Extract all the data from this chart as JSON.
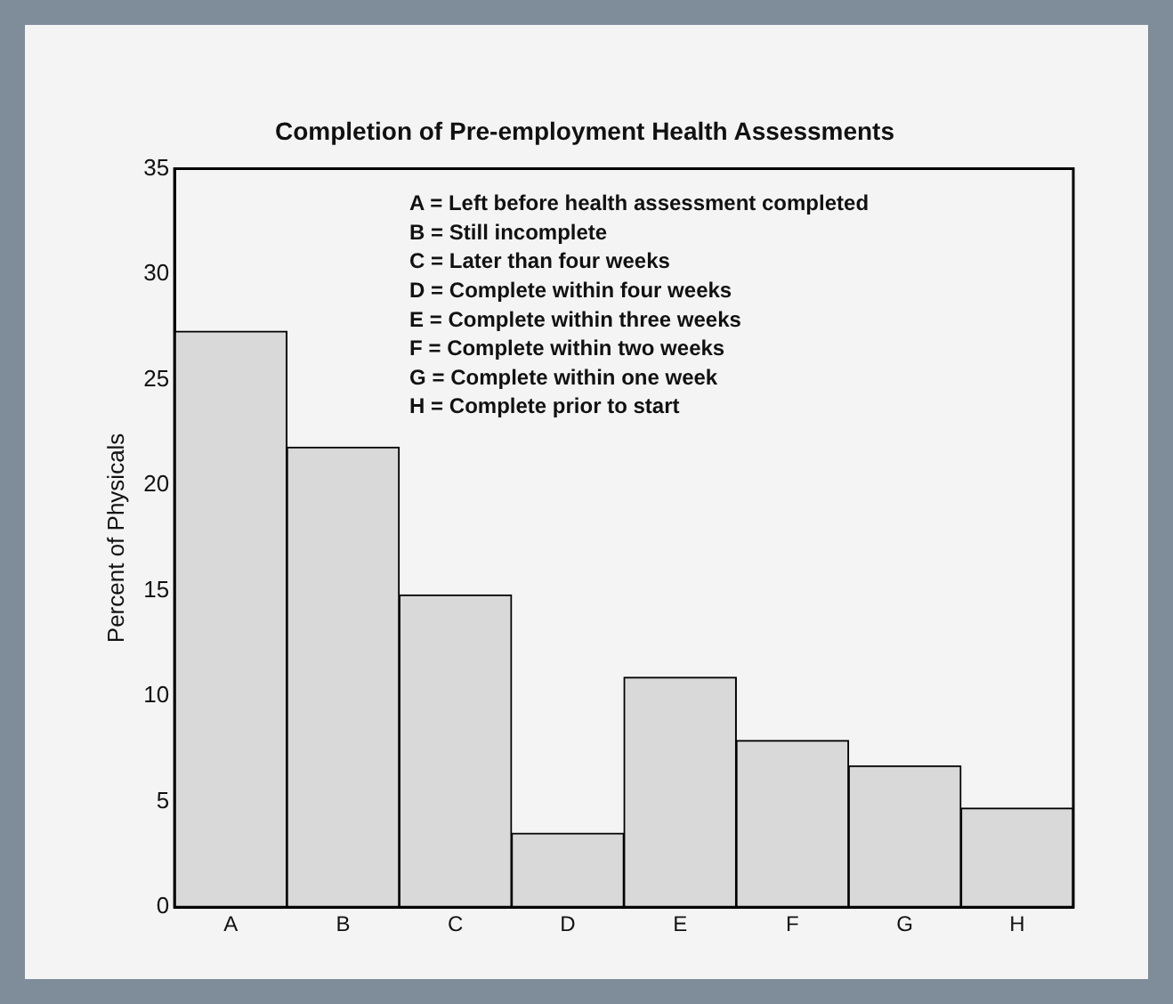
{
  "chart_data": {
    "type": "bar",
    "title": "Completion of Pre-employment Health Assessments",
    "ylabel": "Percent of Physicals",
    "categories": [
      "A",
      "B",
      "C",
      "D",
      "E",
      "F",
      "G",
      "H"
    ],
    "values": [
      27.3,
      21.8,
      14.8,
      3.5,
      10.9,
      7.9,
      6.7,
      4.7
    ],
    "color": "#d9d9d9",
    "ylim": [
      0,
      35
    ],
    "yticks": [
      0,
      5,
      10,
      15,
      20,
      25,
      30,
      35
    ],
    "grid": false,
    "legend": false,
    "annotations": [
      "A = Left before health assessment completed",
      "B = Still incomplete",
      "C = Later than four weeks",
      "D = Complete within four weeks",
      "E = Complete within three weeks",
      "F = Complete within two weeks",
      "G = Complete within one week",
      "H = Complete prior to start"
    ]
  }
}
